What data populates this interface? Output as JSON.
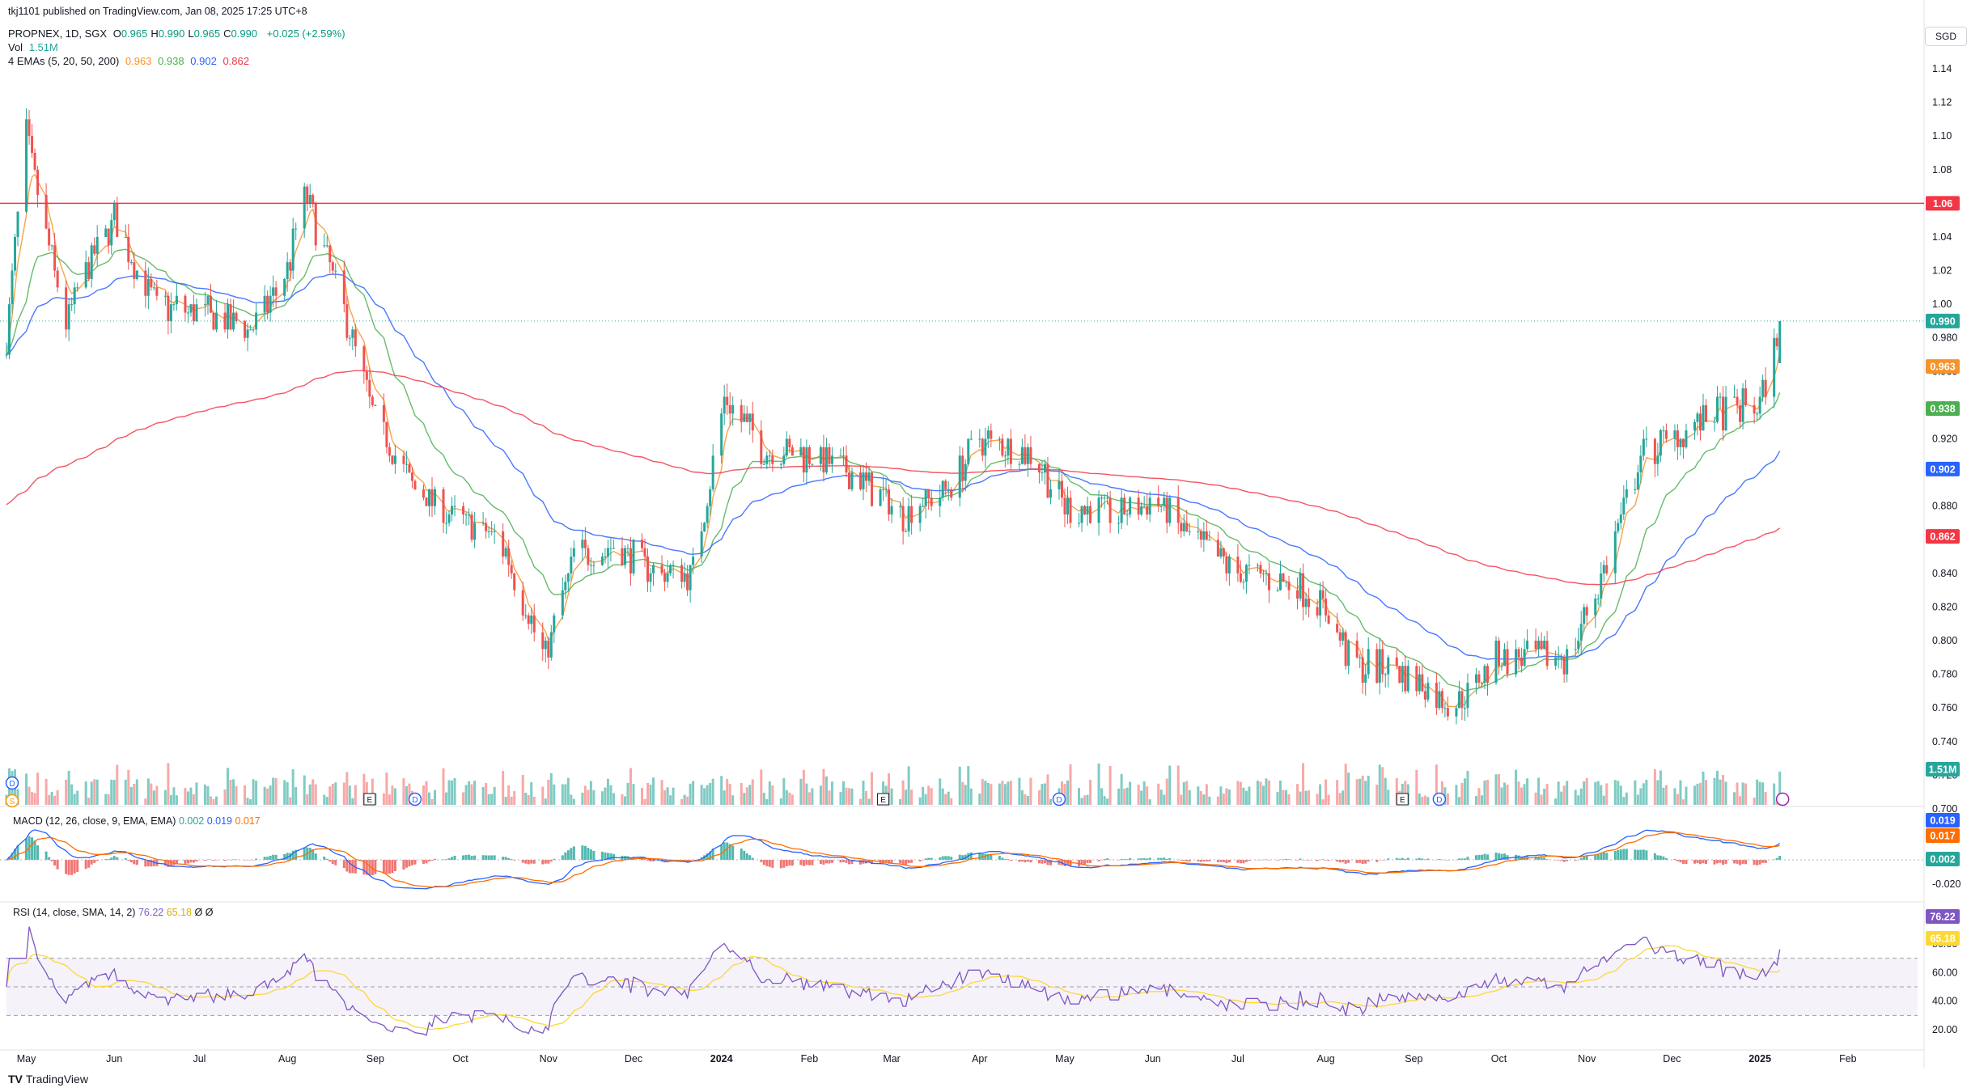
{
  "header": {
    "published": "tkj1101 published on TradingView.com, Jan 08, 2025 17:25 UTC+8",
    "symbol": "PROPNEX, 1D, SGX",
    "ohlc": [
      {
        "k": "O",
        "v": "0.965"
      },
      {
        "k": "H",
        "v": "0.990"
      },
      {
        "k": "L",
        "v": "0.965"
      },
      {
        "k": "C",
        "v": "0.990"
      }
    ],
    "change": "+0.025 (+2.59%)",
    "vol_label": "Vol",
    "vol_value": "1.51M",
    "ema_label": "4 EMAs (5, 20, 50, 200)",
    "ema_values": [
      "0.963",
      "0.938",
      "0.902",
      "0.862"
    ]
  },
  "currency": "SGD",
  "branding": "TradingView",
  "colors": {
    "up": "#26a69a",
    "down": "#ef5350",
    "ema5": "#f7932b",
    "ema20": "#4caf50",
    "ema50": "#2962ff",
    "ema200": "#f23645",
    "macd": "#2962ff",
    "signal": "#ff6d00",
    "rsi": "#7e57c2",
    "rsi_ma": "#fdd835",
    "resistance": "#f23645"
  },
  "macd_header": {
    "label": "MACD (12, 26, close, 9, EMA, EMA)",
    "values": [
      "0.002",
      "0.019",
      "0.017"
    ]
  },
  "rsi_header": {
    "label": "RSI (14, close, SMA, 14, 2)",
    "values": [
      "76.22",
      "65.18",
      "Ø",
      "Ø"
    ]
  },
  "chart_data": [
    {
      "type": "candlestick",
      "title": "PROPNEX, 1D, SGX",
      "ylim": [
        0.7,
        1.16
      ],
      "yticks": [
        "1.14",
        "1.12",
        "1.10",
        "1.08",
        "1.06",
        "1.04",
        "1.02",
        "1.00",
        "0.980",
        "0.960",
        "0.940",
        "0.920",
        "0.900",
        "0.880",
        "0.860",
        "0.840",
        "0.820",
        "0.800",
        "0.780",
        "0.760",
        "0.740",
        "0.720",
        "0.700"
      ],
      "xticks": [
        "May",
        "Jun",
        "Jul",
        "Aug",
        "Sep",
        "Oct",
        "Nov",
        "Dec",
        "2024",
        "Feb",
        "Mar",
        "Apr",
        "May",
        "Jun",
        "Jul",
        "Aug",
        "Sep",
        "Oct",
        "Nov",
        "Dec",
        "2025",
        "Feb"
      ],
      "close_path": [
        {
          "date": "2023-04-24",
          "close": 0.98
        },
        {
          "date": "2023-05-01",
          "close": 1.1
        },
        {
          "date": "2023-05-08",
          "close": 1.04
        },
        {
          "date": "2023-05-15",
          "close": 0.99
        },
        {
          "date": "2023-05-22",
          "close": 1.02
        },
        {
          "date": "2023-06-01",
          "close": 1.05
        },
        {
          "date": "2023-06-15",
          "close": 1.0
        },
        {
          "date": "2023-07-01",
          "close": 0.995
        },
        {
          "date": "2023-07-20",
          "close": 0.985
        },
        {
          "date": "2023-08-01",
          "close": 1.02
        },
        {
          "date": "2023-08-07",
          "close": 1.065
        },
        {
          "date": "2023-08-20",
          "close": 1.0
        },
        {
          "date": "2023-09-01",
          "close": 0.93
        },
        {
          "date": "2023-09-15",
          "close": 0.89
        },
        {
          "date": "2023-10-01",
          "close": 0.87
        },
        {
          "date": "2023-10-15",
          "close": 0.86
        },
        {
          "date": "2023-10-31",
          "close": 0.79
        },
        {
          "date": "2023-11-10",
          "close": 0.85
        },
        {
          "date": "2023-11-25",
          "close": 0.855
        },
        {
          "date": "2023-12-10",
          "close": 0.84
        },
        {
          "date": "2023-12-22",
          "close": 0.84
        },
        {
          "date": "2024-01-02",
          "close": 0.945
        },
        {
          "date": "2024-01-15",
          "close": 0.915
        },
        {
          "date": "2024-02-01",
          "close": 0.91
        },
        {
          "date": "2024-02-20",
          "close": 0.895
        },
        {
          "date": "2024-03-05",
          "close": 0.875
        },
        {
          "date": "2024-03-20",
          "close": 0.89
        },
        {
          "date": "2024-04-01",
          "close": 0.92
        },
        {
          "date": "2024-04-20",
          "close": 0.91
        },
        {
          "date": "2024-05-01",
          "close": 0.88
        },
        {
          "date": "2024-05-20",
          "close": 0.875
        },
        {
          "date": "2024-06-01",
          "close": 0.885
        },
        {
          "date": "2024-06-15",
          "close": 0.86
        },
        {
          "date": "2024-07-01",
          "close": 0.84
        },
        {
          "date": "2024-07-20",
          "close": 0.835
        },
        {
          "date": "2024-08-01",
          "close": 0.82
        },
        {
          "date": "2024-08-10",
          "close": 0.785
        },
        {
          "date": "2024-08-25",
          "close": 0.785
        },
        {
          "date": "2024-09-15",
          "close": 0.76
        },
        {
          "date": "2024-10-01",
          "close": 0.79
        },
        {
          "date": "2024-10-25",
          "close": 0.79
        },
        {
          "date": "2024-11-05",
          "close": 0.83
        },
        {
          "date": "2024-11-20",
          "close": 0.91
        },
        {
          "date": "2024-12-01",
          "close": 0.92
        },
        {
          "date": "2024-12-15",
          "close": 0.935
        },
        {
          "date": "2025-01-01",
          "close": 0.94
        },
        {
          "date": "2025-01-08",
          "close": 0.99
        }
      ],
      "ema": [
        {
          "name": "EMA 5",
          "value": 0.963
        },
        {
          "name": "EMA 20",
          "value": 0.938
        },
        {
          "name": "EMA 50",
          "value": 0.902
        },
        {
          "name": "EMA 200",
          "value": 0.862
        }
      ],
      "resistance_line": 1.06,
      "last_close": 0.99,
      "price_labels": [
        "1.06",
        "0.990",
        "0.963",
        "0.938",
        "0.902",
        "0.862",
        "1.51M"
      ],
      "volume_last": "1.51M",
      "event_markers": [
        "D",
        "S",
        "E",
        "D",
        "E",
        "D",
        "E",
        "D"
      ]
    },
    {
      "type": "line",
      "title": "MACD (12, 26, close, 9, EMA, EMA)",
      "yticks": [
        "-0.020"
      ],
      "last": {
        "histogram": 0.002,
        "macd": 0.019,
        "signal": 0.017
      },
      "price_labels": [
        "0.019",
        "0.017",
        "0.002"
      ]
    },
    {
      "type": "line",
      "title": "RSI (14, close, SMA, 14, 2)",
      "ylim": [
        15,
        85
      ],
      "yticks": [
        "80.00",
        "60.00",
        "40.00",
        "20.00"
      ],
      "bands": [
        70,
        50,
        30
      ],
      "last": {
        "rsi": 76.22,
        "ma": 65.18
      },
      "price_labels": [
        "76.22",
        "65.18"
      ]
    }
  ]
}
